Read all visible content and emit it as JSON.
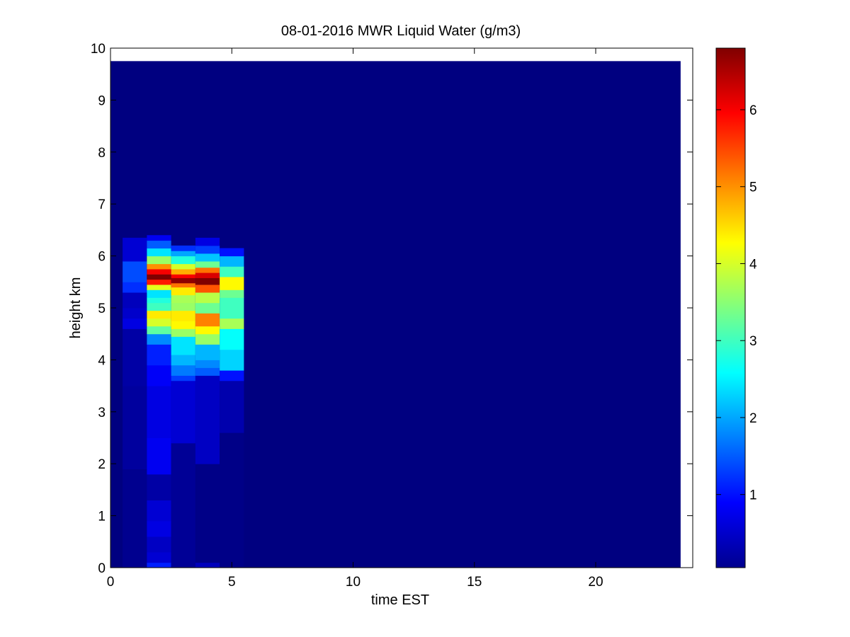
{
  "chart_data": {
    "type": "heatmap",
    "title": "08-01-2016 MWR Liquid Water (g/m3)",
    "xlabel": "time EST",
    "ylabel": "height km",
    "xlim": [
      0,
      24
    ],
    "ylim": [
      0,
      10
    ],
    "x_ticks": [
      0,
      5,
      10,
      15,
      20
    ],
    "y_ticks": [
      0,
      1,
      2,
      3,
      4,
      5,
      6,
      7,
      8,
      9,
      10
    ],
    "colorbar": {
      "colormap": "jet",
      "range": [
        0.05,
        6.8
      ],
      "ticks": [
        1,
        2,
        3,
        4,
        5,
        6
      ]
    },
    "background_value": 0.05,
    "data_extent": {
      "x": [
        0,
        23.5
      ],
      "y": [
        0,
        9.75
      ]
    },
    "columns": [
      {
        "x": [
          0.5,
          1.5
        ],
        "cells": [
          {
            "y": [
              0,
              1.9
            ],
            "v": 0.15
          },
          {
            "y": [
              1.9,
              3.5
            ],
            "v": 0.25
          },
          {
            "y": [
              3.5,
              4.6
            ],
            "v": 0.3
          },
          {
            "y": [
              4.6,
              4.8
            ],
            "v": 0.7
          },
          {
            "y": [
              4.8,
              5.0
            ],
            "v": 0.55
          },
          {
            "y": [
              5.0,
              5.3
            ],
            "v": 0.45
          },
          {
            "y": [
              5.3,
              5.5
            ],
            "v": 1.2
          },
          {
            "y": [
              5.5,
              5.9
            ],
            "v": 1.4
          },
          {
            "y": [
              5.9,
              6.35
            ],
            "v": 0.6
          }
        ]
      },
      {
        "x": [
          1.5,
          2.5
        ],
        "cells": [
          {
            "y": [
              0,
              0.1
            ],
            "v": 1.1
          },
          {
            "y": [
              0.1,
              0.3
            ],
            "v": 0.6
          },
          {
            "y": [
              0.3,
              0.6
            ],
            "v": 0.5
          },
          {
            "y": [
              0.6,
              0.9
            ],
            "v": 0.7
          },
          {
            "y": [
              0.9,
              1.3
            ],
            "v": 0.6
          },
          {
            "y": [
              1.3,
              1.8
            ],
            "v": 0.3
          },
          {
            "y": [
              1.8,
              2.5
            ],
            "v": 0.8
          },
          {
            "y": [
              2.5,
              3.5
            ],
            "v": 0.7
          },
          {
            "y": [
              3.5,
              3.9
            ],
            "v": 0.85
          },
          {
            "y": [
              3.9,
              4.3
            ],
            "v": 1.1
          },
          {
            "y": [
              4.3,
              4.5
            ],
            "v": 1.8
          },
          {
            "y": [
              4.5,
              4.65
            ],
            "v": 3.2
          },
          {
            "y": [
              4.65,
              4.8
            ],
            "v": 4.0
          },
          {
            "y": [
              4.8,
              4.95
            ],
            "v": 4.4
          },
          {
            "y": [
              4.95,
              5.1
            ],
            "v": 3.0
          },
          {
            "y": [
              5.1,
              5.2
            ],
            "v": 2.8
          },
          {
            "y": [
              5.2,
              5.35
            ],
            "v": 2.4
          },
          {
            "y": [
              5.35,
              5.45
            ],
            "v": 4.1
          },
          {
            "y": [
              5.45,
              5.55
            ],
            "v": 5.8
          },
          {
            "y": [
              5.55,
              5.65
            ],
            "v": 6.8
          },
          {
            "y": [
              5.65,
              5.75
            ],
            "v": 6.0
          },
          {
            "y": [
              5.75,
              5.85
            ],
            "v": 5.0
          },
          {
            "y": [
              5.85,
              6.0
            ],
            "v": 3.6
          },
          {
            "y": [
              6.0,
              6.15
            ],
            "v": 2.4
          },
          {
            "y": [
              6.15,
              6.3
            ],
            "v": 1.5
          },
          {
            "y": [
              6.3,
              6.4
            ],
            "v": 0.8
          }
        ]
      },
      {
        "x": [
          2.5,
          3.5
        ],
        "cells": [
          {
            "y": [
              0,
              2.4
            ],
            "v": 0.2
          },
          {
            "y": [
              2.4,
              3.6
            ],
            "v": 0.6
          },
          {
            "y": [
              3.6,
              3.7
            ],
            "v": 1.3
          },
          {
            "y": [
              3.7,
              3.9
            ],
            "v": 1.7
          },
          {
            "y": [
              3.9,
              4.1
            ],
            "v": 2.1
          },
          {
            "y": [
              4.1,
              4.45
            ],
            "v": 2.4
          },
          {
            "y": [
              4.45,
              4.6
            ],
            "v": 3.6
          },
          {
            "y": [
              4.6,
              4.75
            ],
            "v": 4.3
          },
          {
            "y": [
              4.75,
              4.95
            ],
            "v": 4.4
          },
          {
            "y": [
              4.95,
              5.1
            ],
            "v": 3.6
          },
          {
            "y": [
              5.1,
              5.25
            ],
            "v": 3.7
          },
          {
            "y": [
              5.25,
              5.4
            ],
            "v": 4.4
          },
          {
            "y": [
              5.4,
              5.48
            ],
            "v": 5.2
          },
          {
            "y": [
              5.48,
              5.58
            ],
            "v": 6.7
          },
          {
            "y": [
              5.58,
              5.65
            ],
            "v": 6.0
          },
          {
            "y": [
              5.65,
              5.75
            ],
            "v": 4.8
          },
          {
            "y": [
              5.75,
              5.85
            ],
            "v": 4.0
          },
          {
            "y": [
              5.85,
              6.0
            ],
            "v": 2.8
          },
          {
            "y": [
              6.0,
              6.1
            ],
            "v": 2.0
          },
          {
            "y": [
              6.1,
              6.2
            ],
            "v": 1.2
          }
        ]
      },
      {
        "x": [
          3.5,
          4.5
        ],
        "cells": [
          {
            "y": [
              0,
              0.1
            ],
            "v": 0.45
          },
          {
            "y": [
              0.1,
              2.0
            ],
            "v": 0.1
          },
          {
            "y": [
              2.0,
              3.7
            ],
            "v": 0.5
          },
          {
            "y": [
              3.7,
              3.85
            ],
            "v": 1.5
          },
          {
            "y": [
              3.85,
              4.0
            ],
            "v": 1.8
          },
          {
            "y": [
              4.0,
              4.3
            ],
            "v": 2.1
          },
          {
            "y": [
              4.3,
              4.5
            ],
            "v": 3.6
          },
          {
            "y": [
              4.5,
              4.65
            ],
            "v": 4.3
          },
          {
            "y": [
              4.65,
              4.9
            ],
            "v": 5.1
          },
          {
            "y": [
              4.9,
              5.1
            ],
            "v": 3.3
          },
          {
            "y": [
              5.1,
              5.3
            ],
            "v": 3.8
          },
          {
            "y": [
              5.3,
              5.45
            ],
            "v": 5.4
          },
          {
            "y": [
              5.45,
              5.58
            ],
            "v": 6.8
          },
          {
            "y": [
              5.58,
              5.68
            ],
            "v": 6.2
          },
          {
            "y": [
              5.68,
              5.78
            ],
            "v": 5.2
          },
          {
            "y": [
              5.78,
              5.9
            ],
            "v": 3.3
          },
          {
            "y": [
              5.9,
              6.05
            ],
            "v": 2.2
          },
          {
            "y": [
              6.05,
              6.2
            ],
            "v": 1.3
          },
          {
            "y": [
              6.2,
              6.35
            ],
            "v": 0.7
          }
        ]
      },
      {
        "x": [
          4.5,
          5.5
        ],
        "cells": [
          {
            "y": [
              0,
              2.6
            ],
            "v": 0.1
          },
          {
            "y": [
              2.6,
              3.6
            ],
            "v": 0.35
          },
          {
            "y": [
              3.6,
              3.8
            ],
            "v": 1.0
          },
          {
            "y": [
              3.8,
              4.2
            ],
            "v": 2.3
          },
          {
            "y": [
              4.2,
              4.6
            ],
            "v": 2.6
          },
          {
            "y": [
              4.6,
              4.8
            ],
            "v": 3.7
          },
          {
            "y": [
              4.8,
              5.2
            ],
            "v": 3.0
          },
          {
            "y": [
              5.2,
              5.35
            ],
            "v": 3.3
          },
          {
            "y": [
              5.35,
              5.6
            ],
            "v": 4.3
          },
          {
            "y": [
              5.6,
              5.8
            ],
            "v": 3.0
          },
          {
            "y": [
              5.8,
              6.0
            ],
            "v": 2.1
          },
          {
            "y": [
              6.0,
              6.15
            ],
            "v": 1.0
          }
        ]
      }
    ]
  }
}
